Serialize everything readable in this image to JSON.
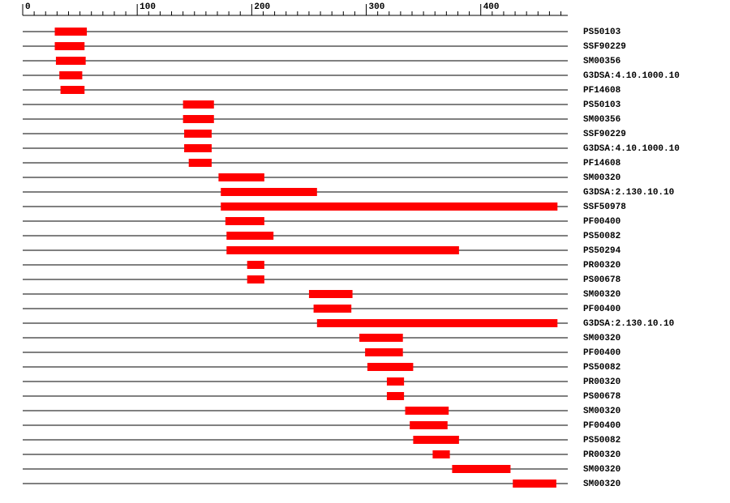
{
  "chart_data": {
    "type": "range",
    "xlim": [
      0,
      476
    ],
    "xticks": [
      0,
      100,
      200,
      300,
      400
    ],
    "xticks_minor": [
      10,
      20,
      30,
      40,
      50,
      60,
      70,
      80,
      90,
      110,
      120,
      130,
      140,
      150,
      160,
      170,
      180,
      190,
      210,
      220,
      230,
      240,
      250,
      260,
      270,
      280,
      290,
      310,
      320,
      330,
      340,
      350,
      360,
      370,
      380,
      390,
      410,
      420,
      430,
      440,
      450,
      460,
      470
    ],
    "color": "#ff0000",
    "categories": [
      "PS50103",
      "SSF90229",
      "SM00356",
      "G3DSA:4.10.1000.10",
      "PF14608",
      "PS50103",
      "SM00356",
      "SSF90229",
      "G3DSA:4.10.1000.10",
      "PF14608",
      "SM00320",
      "G3DSA:2.130.10.10",
      "SSF50978",
      "PF00400",
      "PS50082",
      "PS50294",
      "PR00320",
      "PS00678",
      "SM00320",
      "PF00400",
      "G3DSA:2.130.10.10",
      "SM00320",
      "PF00400",
      "PS50082",
      "PR00320",
      "PS00678",
      "SM00320",
      "PF00400",
      "PS50082",
      "PR00320",
      "SM00320",
      "SM00320"
    ],
    "starts": [
      28,
      28,
      29,
      32,
      33,
      140,
      140,
      141,
      141,
      145,
      171,
      173,
      173,
      177,
      178,
      178,
      196,
      196,
      250,
      254,
      257,
      294,
      299,
      301,
      318,
      318,
      334,
      338,
      341,
      358,
      375,
      428
    ],
    "ends": [
      56,
      54,
      55,
      52,
      54,
      167,
      167,
      165,
      165,
      165,
      211,
      257,
      467,
      211,
      219,
      381,
      211,
      211,
      288,
      287,
      467,
      332,
      332,
      341,
      333,
      333,
      372,
      371,
      381,
      373,
      426,
      466
    ]
  }
}
